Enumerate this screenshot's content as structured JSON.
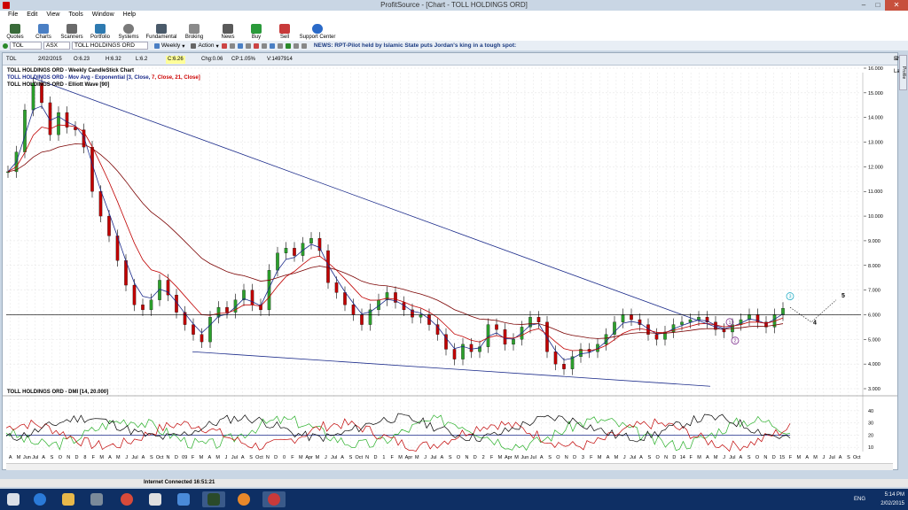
{
  "window": {
    "title": "ProfitSource - [Chart - TOLL HOLDINGS ORD]"
  },
  "menu": [
    "File",
    "Edit",
    "View",
    "Tools",
    "Window",
    "Help"
  ],
  "toolbar": [
    "Quotes",
    "Charts",
    "Scanners",
    "Portfolio",
    "Systems",
    "Fundamental",
    "Broking",
    "News",
    "Buy",
    "Sell",
    "Support Center"
  ],
  "strip": {
    "code": "TOL",
    "exchange": "ASX",
    "name": "TOLL HOLDINGS ORD",
    "period": "Weekly",
    "action": "Action",
    "news": "NEWS: RPT-Pilot held by Islamic State puts Jordan's king in a tough spot:"
  },
  "chart_header": {
    "code": "TOL",
    "date": "2/02/2015",
    "open": "O:6.23",
    "high": "H:6.32",
    "low": "L:6.2",
    "close": "C:6.26",
    "change": "Chg:0.06",
    "change_pct": "CP:1.05%",
    "volume": "V:1497914",
    "show_last": "Show Last"
  },
  "legend": {
    "line1": "TOLL HOLDINGS ORD - Weekly CandleStick Chart",
    "line2_a": "TOLL HOLDINGS ORD - Mov Avg - Exponential [3, Close, ",
    "line2_b": "7, Close, 21, Close]",
    "line3": "TOLL HOLDINGS ORD - Elliott Wave [90]"
  },
  "dmi_title": "TOLL HOLDINGS ORD - DMI [14, 20.000]",
  "side_tab": "Profile",
  "status": {
    "connection": "Internet Connected 16:51:21"
  },
  "tray": {
    "lang": "ENG",
    "time": "5:14 PM",
    "date": "2/02/2015"
  },
  "chart_data": [
    {
      "type": "line",
      "title": "TOLL HOLDINGS ORD - Weekly CandleStick Chart",
      "ylim": [
        3.0,
        16.0
      ],
      "y_ticks": [
        "16.000",
        "15.000",
        "14.000",
        "13.000",
        "12.000",
        "11.000",
        "10.000",
        "9.000",
        "8.000",
        "7.000",
        "6.000",
        "5.000",
        "4.000",
        "3.000"
      ],
      "x_ticks": [
        "A",
        "M",
        "Jun",
        "Jul",
        "A",
        "S",
        "O",
        "N",
        "D",
        "8",
        "F",
        "M",
        "A",
        "M",
        "J",
        "Jul",
        "A",
        "S",
        "Oct",
        "N",
        "D",
        "09",
        "F",
        "M",
        "A",
        "M",
        "J",
        "Jul",
        "A",
        "S",
        "Oct",
        "N",
        "D",
        "0",
        "F",
        "M",
        "Apr",
        "M",
        "J",
        "Jul",
        "A",
        "S",
        "Oct",
        "N",
        "D",
        "1",
        "F",
        "M",
        "Apr",
        "M",
        "J",
        "Jul",
        "A",
        "S",
        "O",
        "N",
        "D",
        "2",
        "F",
        "M",
        "Apr",
        "M",
        "Jun",
        "Jul",
        "A",
        "S",
        "O",
        "N",
        "D",
        "3",
        "F",
        "M",
        "A",
        "M",
        "J",
        "Jul",
        "A",
        "S",
        "O",
        "N",
        "D",
        "14",
        "F",
        "M",
        "A",
        "M",
        "J",
        "Jul",
        "A",
        "S",
        "O",
        "N",
        "D",
        "15",
        "F",
        "M",
        "A",
        "M",
        "J",
        "Jul",
        "A",
        "S",
        "Oct"
      ],
      "series": [
        {
          "values": [
            11.8,
            12.6,
            14.3,
            15.4,
            14.6,
            13.3,
            14.2,
            13.6,
            13.5,
            12.8,
            11.0,
            10.0,
            9.2,
            8.2,
            7.2,
            6.4,
            6.2,
            6.6,
            7.4,
            6.8,
            6.1,
            5.6,
            5.2,
            4.9,
            5.9,
            6.3,
            6.1,
            6.6,
            7.0,
            6.4,
            6.2,
            7.8,
            8.5,
            8.7,
            8.4,
            8.9,
            9.1,
            8.6,
            7.3,
            6.9,
            6.4,
            6.0,
            5.6,
            6.2,
            6.6,
            6.9,
            6.5,
            6.2,
            5.9,
            6.0,
            5.6,
            5.2,
            4.6,
            4.2,
            4.8,
            4.5,
            4.7,
            5.6,
            5.4,
            4.8,
            5.0,
            5.5,
            5.9,
            5.7,
            4.5,
            4.0,
            3.8,
            4.3,
            4.6,
            4.5,
            4.8,
            5.2,
            5.7,
            6.0,
            5.8,
            5.6,
            5.2,
            5.0,
            5.3,
            5.6,
            5.7,
            5.8,
            5.9,
            5.7,
            5.4,
            5.3,
            5.6,
            5.8,
            6.0,
            5.7,
            5.5,
            6.0,
            6.26
          ]
        }
      ]
    },
    {
      "type": "line",
      "title": "TOLL HOLDINGS ORD - DMI [14, 20.000]",
      "ylim": [
        5,
        45
      ],
      "y_ticks": [
        "40",
        "30",
        "20",
        "10"
      ]
    }
  ]
}
